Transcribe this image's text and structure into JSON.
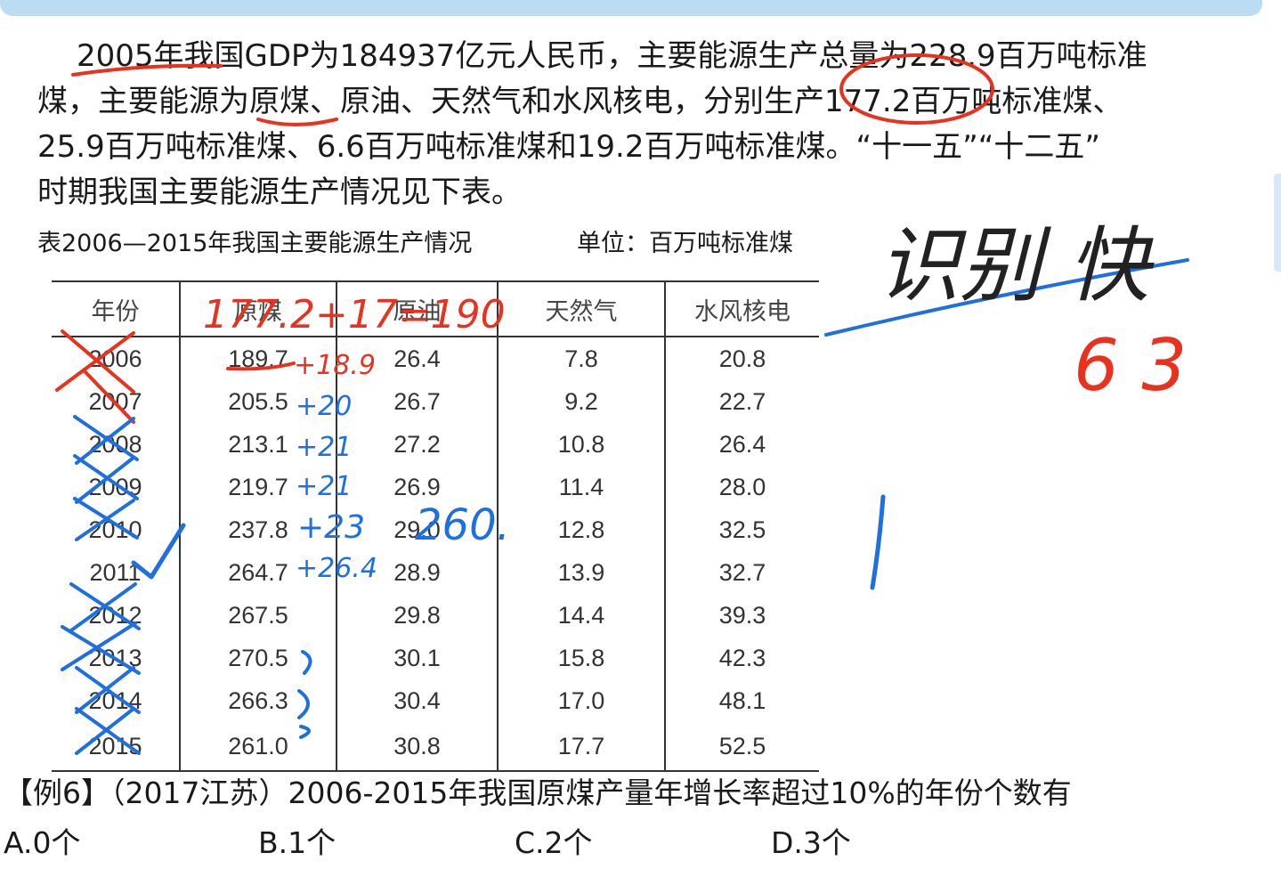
{
  "paragraph_lines": [
    "2005年我国GDP为184937亿元人民币，主要能源生产总量为228.9百万吨标准",
    "煤，主要能源为原煤、原油、天然气和水风核电，分别生产177.2百万吨标准煤、",
    "25.9百万吨标准煤、6.6百万吨标准煤和19.2百万吨标准煤。“十一五”“十二五”",
    "时期我国主要能源生产情况见下表。"
  ],
  "table": {
    "caption": "表2006—2015年我国主要能源生产情况",
    "unit": "单位：百万吨标准煤",
    "headers": [
      "年份",
      "原煤",
      "原油",
      "天然气",
      "水风核电"
    ],
    "rows": [
      [
        "2006",
        "189.7",
        "26.4",
        "7.8",
        "20.8"
      ],
      [
        "2007",
        "205.5",
        "26.7",
        "9.2",
        "22.7"
      ],
      [
        "2008",
        "213.1",
        "27.2",
        "10.8",
        "26.4"
      ],
      [
        "2009",
        "219.7",
        "26.9",
        "11.4",
        "28.0"
      ],
      [
        "2010",
        "237.8",
        "29.0",
        "12.8",
        "32.5"
      ],
      [
        "2011",
        "264.7",
        "28.9",
        "13.9",
        "32.7"
      ],
      [
        "2012",
        "267.5",
        "29.8",
        "14.4",
        "39.3"
      ],
      [
        "2013",
        "270.5",
        "30.1",
        "15.8",
        "42.3"
      ],
      [
        "2014",
        "266.3",
        "30.4",
        "17.0",
        "48.1"
      ],
      [
        "2015",
        "261.0",
        "30.8",
        "17.7",
        "52.5"
      ]
    ]
  },
  "question": {
    "text": "【例6】（2017江苏）2006-2015年我国原煤产量年增长率超过10%的年份个数有",
    "options": [
      "A.0个",
      "B.1个",
      "C.2个",
      "D.3个"
    ]
  },
  "annotations": {
    "red_header_note": "177.2+17=190",
    "red_row_note": "+18.9",
    "blue_increments": [
      "+20",
      "+21",
      "+21",
      "+23",
      "+26.4"
    ],
    "blue_threshold": "260.",
    "handwritten_right": "识别 快",
    "handwritten_red": "6 3"
  },
  "colors": {
    "ink_red": "#e8321e",
    "ink_blue": "#1f6fe0",
    "banner": "#bcdcf3"
  }
}
